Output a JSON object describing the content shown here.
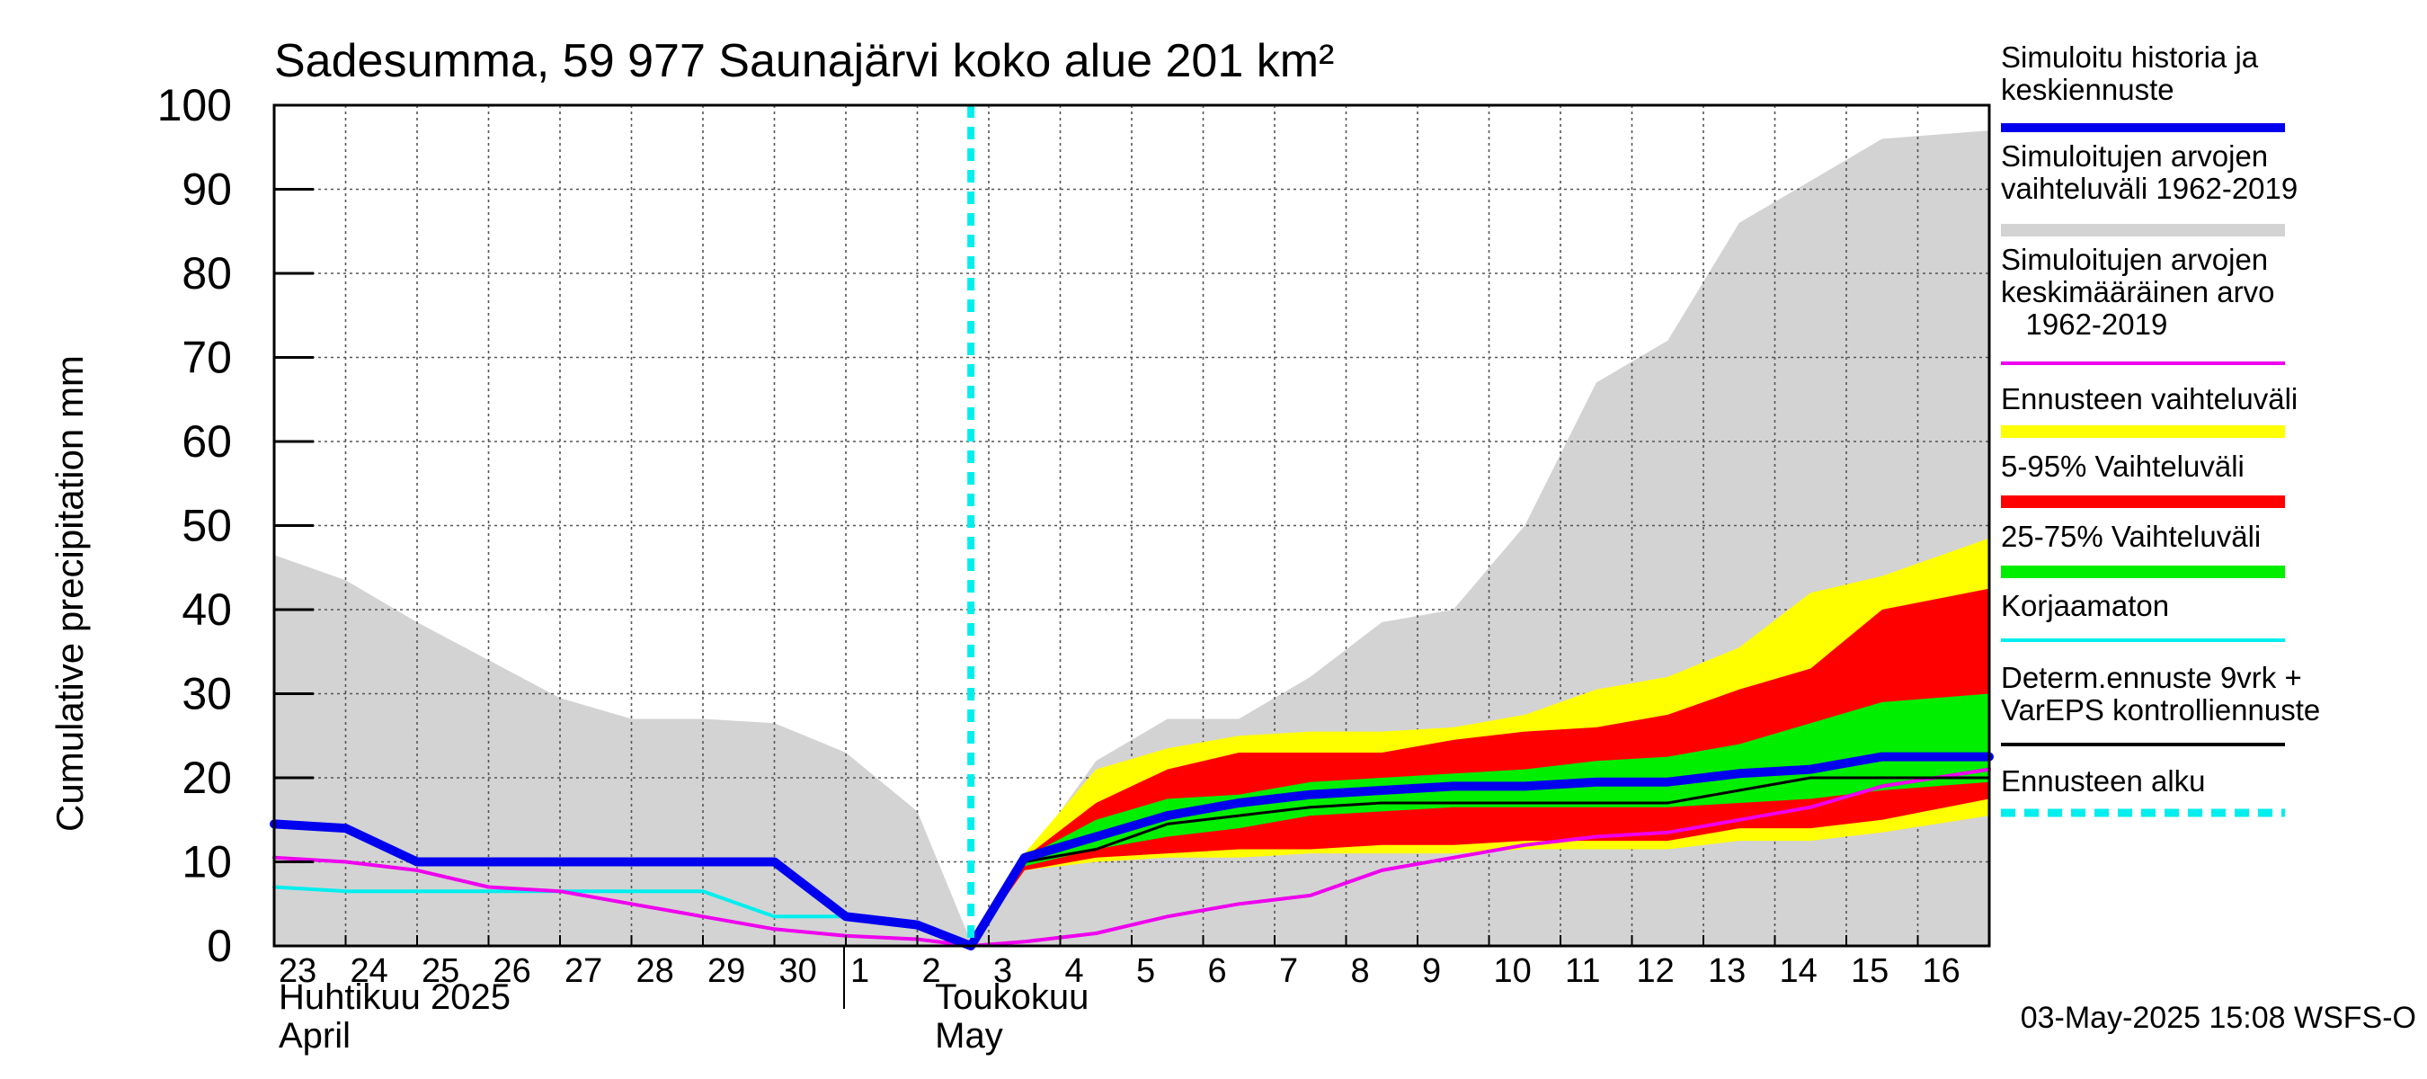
{
  "chart_data": {
    "type": "area",
    "title": "Sadesumma, 59 977 Saunajärvi koko alue 201 km²",
    "ylabel": "Cumulative precipitation   mm",
    "ylim": [
      0,
      100
    ],
    "y_ticks": [
      0,
      10,
      20,
      30,
      40,
      50,
      60,
      70,
      80,
      90,
      100
    ],
    "x_day_labels": [
      "23",
      "24",
      "25",
      "26",
      "27",
      "28",
      "29",
      "30",
      "1",
      "2",
      "3",
      "4",
      "5",
      "6",
      "7",
      "8",
      "9",
      "10",
      "11",
      "12",
      "13",
      "14",
      "15",
      "16"
    ],
    "x_range": [
      0,
      24
    ],
    "month_labels": {
      "april_fi": "Huhtikuu  2025",
      "april_en": "April",
      "may_fi": "Toukokuu",
      "may_en": "May"
    },
    "forecast_start": 9.75,
    "timestamp": "03-May-2025 15:08 WSFS-O",
    "legend": [
      {
        "key": "sim",
        "label": "Simuloitu historia ja\nkeskiennuste",
        "color": "#0000ee",
        "style": "thick"
      },
      {
        "key": "range_hist",
        "label": "Simuloitujen arvojen\nvaihteluväli 1962-2019",
        "color": "#d3d3d3",
        "style": "band"
      },
      {
        "key": "mean_hist",
        "label": "Simuloitujen arvojen\nkeskimääräinen arvo\n   1962-2019",
        "color": "#ee00ee",
        "style": "line"
      },
      {
        "key": "ens_range",
        "label": "Ennusteen vaihteluväli",
        "color": "#ffff00",
        "style": "band"
      },
      {
        "key": "p5_95",
        "label": "5-95% Vaihteluväli",
        "color": "#ff0000",
        "style": "band"
      },
      {
        "key": "p25_75",
        "label": "25-75% Vaihteluväli",
        "color": "#00ee00",
        "style": "band"
      },
      {
        "key": "uncorr",
        "label": "Korjaamaton",
        "color": "#00eeee",
        "style": "line"
      },
      {
        "key": "determ",
        "label": "Determ.ennuste 9vrk +\nVarEPS kontrolliennuste",
        "color": "#000000",
        "style": "line"
      },
      {
        "key": "fc_start",
        "label": "Ennusteen alku",
        "color": "#00eeee",
        "style": "dashed"
      }
    ],
    "series": [
      {
        "name": "Simuloitujen arvojen vaihteluväli 1962-2019 (upper)",
        "x": [
          0,
          1,
          2,
          3,
          4,
          5,
          6,
          7,
          8,
          9,
          9.75,
          10.5,
          11.5,
          12.5,
          13.5,
          14.5,
          15.5,
          16.5,
          17.5,
          18.5,
          19.5,
          20.5,
          21.5,
          22.5,
          24
        ],
        "values": [
          46.5,
          43.5,
          38.5,
          34,
          29.5,
          27,
          27,
          26.5,
          23,
          16,
          0.5,
          10,
          22,
          27,
          27,
          32,
          38.5,
          40,
          50,
          67,
          72,
          86,
          91,
          96,
          97
        ]
      },
      {
        "name": "Ennusteen vaihteluväli (upper)",
        "x": [
          9.75,
          10.5,
          11.5,
          12.5,
          13.5,
          14.5,
          15.5,
          16.5,
          17.5,
          18.5,
          19.5,
          20.5,
          21.5,
          22.5,
          24
        ],
        "values": [
          0,
          11,
          21,
          23.5,
          25,
          25.5,
          25.5,
          26,
          27.5,
          30.5,
          32,
          35.5,
          42,
          44,
          48.5
        ]
      },
      {
        "name": "Ennusteen vaihteluväli (lower)",
        "x": [
          9.75,
          10.5,
          11.5,
          12.5,
          13.5,
          14.5,
          15.5,
          16.5,
          17.5,
          18.5,
          19.5,
          20.5,
          21.5,
          22.5,
          24
        ],
        "values": [
          0,
          9,
          10,
          10.5,
          10.5,
          11,
          11,
          11,
          11.5,
          11.5,
          11.5,
          12.5,
          12.5,
          13.5,
          15.5
        ]
      },
      {
        "name": "5-95% Vaihteluväli (upper)",
        "x": [
          9.75,
          10.5,
          11.5,
          12.5,
          13.5,
          14.5,
          15.5,
          16.5,
          17.5,
          18.5,
          19.5,
          20.5,
          21.5,
          22.5,
          24
        ],
        "values": [
          0,
          10.5,
          17,
          21,
          23,
          23,
          23,
          24.5,
          25.5,
          26,
          27.5,
          30.5,
          33,
          40,
          42.5
        ]
      },
      {
        "name": "5-95% Vaihteluväli (lower)",
        "x": [
          9.75,
          10.5,
          11.5,
          12.5,
          13.5,
          14.5,
          15.5,
          16.5,
          17.5,
          18.5,
          19.5,
          20.5,
          21.5,
          22.5,
          24
        ],
        "values": [
          0,
          9,
          10.5,
          11,
          11.5,
          11.5,
          12,
          12,
          12.5,
          12.5,
          12.5,
          14,
          14,
          15,
          17.5
        ]
      },
      {
        "name": "25-75% Vaihteluväli (upper)",
        "x": [
          9.75,
          10.5,
          11.5,
          12.5,
          13.5,
          14.5,
          15.5,
          16.5,
          17.5,
          18.5,
          19.5,
          20.5,
          21.5,
          22.5,
          24
        ],
        "values": [
          0,
          10.5,
          15,
          17.5,
          18,
          19.5,
          20,
          20.5,
          21,
          22,
          22.5,
          24,
          26.5,
          29,
          30
        ]
      },
      {
        "name": "25-75% Vaihteluväli (lower)",
        "x": [
          9.75,
          10.5,
          11.5,
          12.5,
          13.5,
          14.5,
          15.5,
          16.5,
          17.5,
          18.5,
          19.5,
          20.5,
          21.5,
          22.5,
          24
        ],
        "values": [
          0,
          9.5,
          11.5,
          13,
          14,
          15.5,
          16,
          16.5,
          16.5,
          16.5,
          16.5,
          17,
          17.5,
          18.5,
          19.5
        ]
      },
      {
        "name": "Determ.ennuste 9vrk + VarEPS kontrolliennuste",
        "x": [
          9.75,
          10.5,
          11.5,
          12.5,
          13.5,
          14.5,
          15.5,
          16.5,
          17.5,
          18.5,
          19.5,
          20.5,
          21.5,
          22.5,
          24
        ],
        "values": [
          0,
          10,
          11.5,
          14.5,
          15.5,
          16.5,
          17,
          17,
          17,
          17,
          17,
          18.5,
          20,
          20,
          20
        ]
      },
      {
        "name": "Simuloitu historia ja keskiennuste",
        "x": [
          0,
          1,
          2,
          3,
          4,
          5,
          6,
          7,
          8,
          9,
          9.75,
          10.5,
          11.5,
          12.5,
          13.5,
          14.5,
          15.5,
          16.5,
          17.5,
          18.5,
          19.5,
          20.5,
          21.5,
          22.5,
          24
        ],
        "values": [
          14.5,
          14,
          10,
          10,
          10,
          10,
          10,
          10,
          3.5,
          2.5,
          0,
          10.5,
          13,
          15.5,
          17,
          18,
          18.5,
          19,
          19,
          19.5,
          19.5,
          20.5,
          21,
          22.5,
          22.5
        ]
      },
      {
        "name": "Simuloitujen arvojen keskimääräinen arvo 1962-2019",
        "x": [
          0,
          1,
          2,
          3,
          4,
          5,
          6,
          7,
          8,
          9,
          9.75,
          10.5,
          11.5,
          12.5,
          13.5,
          14.5,
          15.5,
          16.5,
          17.5,
          18.5,
          19.5,
          20.5,
          21.5,
          22.5,
          24
        ],
        "values": [
          10.5,
          10,
          9,
          7,
          6.5,
          5,
          3.5,
          2,
          1.2,
          0.8,
          0,
          0.5,
          1.5,
          3.5,
          5,
          6,
          9,
          10.5,
          12,
          13,
          13.5,
          15,
          16.5,
          19,
          21
        ]
      },
      {
        "name": "Korjaamaton",
        "x": [
          0,
          1,
          2,
          3,
          4,
          5,
          6,
          7,
          8,
          9,
          9.75
        ],
        "values": [
          7,
          6.5,
          6.5,
          6.5,
          6.5,
          6.5,
          6.5,
          3.5,
          3.5,
          2.5,
          0
        ]
      }
    ]
  }
}
